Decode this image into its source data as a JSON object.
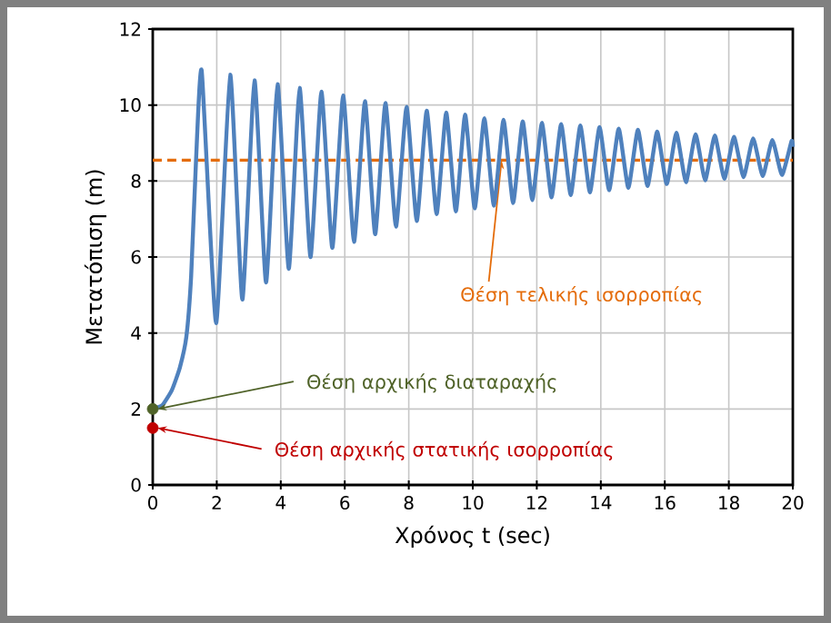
{
  "chart_data": {
    "type": "line",
    "xlabel": "Χρόνος t (sec)",
    "ylabel": "Μετατόπιση (m)",
    "xlim": [
      0,
      20
    ],
    "ylim": [
      0,
      12
    ],
    "xticks": [
      0,
      2,
      4,
      6,
      8,
      10,
      12,
      14,
      16,
      18,
      20
    ],
    "yticks": [
      0,
      2,
      4,
      6,
      8,
      10,
      12
    ],
    "grid": true,
    "series": [
      {
        "color": "#4f81bd",
        "x": [
          0,
          0.3,
          0.6,
          0.85,
          1.05,
          1.2,
          1.35,
          1.53,
          1.98,
          2.42,
          2.8,
          3.18,
          3.54,
          3.9,
          4.25,
          4.59,
          4.93,
          5.27,
          5.61,
          5.95,
          6.29,
          6.63,
          6.95,
          7.27,
          7.6,
          7.93,
          8.25,
          8.56,
          8.87,
          9.17,
          9.47,
          9.76,
          10.06,
          10.36,
          10.66,
          10.96,
          11.26,
          11.56,
          11.86,
          12.16,
          12.46,
          12.76,
          13.06,
          13.36,
          13.66,
          13.96,
          14.26,
          14.56,
          14.86,
          15.16,
          15.46,
          15.76,
          16.06,
          16.36,
          16.66,
          16.96,
          17.26,
          17.56,
          17.86,
          18.16,
          18.46,
          18.76,
          19.06,
          19.36,
          19.66,
          19.96,
          20
        ],
        "values": [
          2,
          2.1,
          2.5,
          3.1,
          3.9,
          5.5,
          8.5,
          10.9,
          4.26,
          10.8,
          4.88,
          10.65,
          5.33,
          10.55,
          5.69,
          10.45,
          6.0,
          10.35,
          6.24,
          10.25,
          6.4,
          10.1,
          6.6,
          10.05,
          6.8,
          9.95,
          6.95,
          9.85,
          7.13,
          9.8,
          7.2,
          9.75,
          7.28,
          9.65,
          7.35,
          9.61,
          7.42,
          9.57,
          7.5,
          9.53,
          7.57,
          9.5,
          7.63,
          9.46,
          7.7,
          9.42,
          7.76,
          9.38,
          7.82,
          9.35,
          7.87,
          9.3,
          7.92,
          9.27,
          7.97,
          9.23,
          8.02,
          9.2,
          8.06,
          9.16,
          8.1,
          9.12,
          8.13,
          9.08,
          8.16,
          9.05,
          8.9
        ]
      },
      {
        "type": "scatter",
        "color": "#4f6228",
        "marker": "circle",
        "x": [
          0
        ],
        "values": [
          2
        ]
      },
      {
        "type": "scatter",
        "color": "#c00000",
        "marker": "circle",
        "x": [
          0
        ],
        "values": [
          1.5
        ]
      }
    ],
    "ref_lines": [
      {
        "axis": "y",
        "value": 8.55,
        "label": "Θέση τελικής ισορροπίας",
        "color": "#e46c0a",
        "line_style": "dashed"
      }
    ],
    "annotations": [
      {
        "text": "Θέση αρχικής διαταραχής",
        "x": 0,
        "y": 2
      },
      {
        "text": "Θέση αρχικής στατικής ισορροπίας",
        "x": 0,
        "y": 1.5
      }
    ]
  }
}
